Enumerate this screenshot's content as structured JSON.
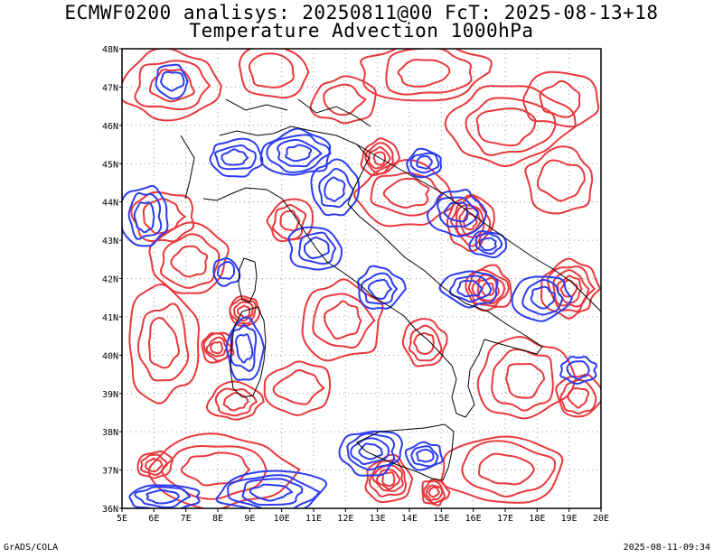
{
  "header": {
    "title_line1": "ECMWF0200 analisys: 20250811@00 FcT: 2025-08-13+18",
    "title_line2": "Temperature Advection 1000hPa"
  },
  "map": {
    "lon_ticks": [
      "5E",
      "6E",
      "7E",
      "8E",
      "9E",
      "10E",
      "11E",
      "12E",
      "13E",
      "14E",
      "15E",
      "16E",
      "17E",
      "18E",
      "19E",
      "20E"
    ],
    "lat_ticks": [
      "48N",
      "47N",
      "46N",
      "45N",
      "44N",
      "43N",
      "42N",
      "41N",
      "40N",
      "39N",
      "38N",
      "37N",
      "36N"
    ],
    "colors": {
      "warm": "#e8383c",
      "cold": "#2b3cf0",
      "coast": "#000000",
      "grid": "#9a9a9a"
    }
  },
  "footer": {
    "left": "GrADS/COLA",
    "right": "2025-08-11-09:34"
  }
}
